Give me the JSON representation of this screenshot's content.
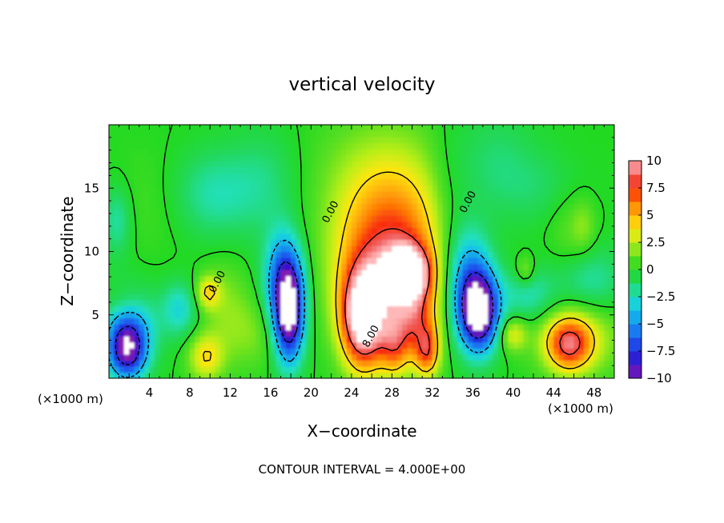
{
  "chart_data": {
    "type": "heatmap",
    "title": "vertical velocity",
    "xlabel": "X−coordinate",
    "ylabel": "Z−coordinate",
    "x_unit_left": "(×1000 m)",
    "x_unit_right": "(×1000 m)",
    "footer": "CONTOUR INTERVAL = 4.000E+00",
    "xlim": [
      0,
      50
    ],
    "ylim": [
      0,
      20
    ],
    "x_ticks": [
      4,
      8,
      12,
      16,
      20,
      24,
      28,
      32,
      36,
      40,
      44,
      48
    ],
    "y_ticks": [
      5,
      10,
      15
    ],
    "colorbar": {
      "min": -10,
      "max": 10,
      "ticks": [
        10,
        7.5,
        5,
        2.5,
        0,
        -2.5,
        -5,
        -7.5,
        -10
      ],
      "tick_labels": [
        "10",
        "7.5",
        "5",
        "2.5",
        "0",
        "−2.5",
        "−5",
        "−7.5",
        "−10"
      ]
    },
    "contour_labels": [
      {
        "text": "0.00",
        "x": 22.2,
        "y": 13.0
      },
      {
        "text": "0.00",
        "x": 35.8,
        "y": 13.8
      },
      {
        "text": "0.00",
        "x": 11.0,
        "y": 7.5
      },
      {
        "text": "8.00",
        "x": 26.2,
        "y": 3.2
      }
    ],
    "features": [
      {
        "x": 1.8,
        "y": 2.3,
        "value": -10,
        "sx": 1.3,
        "sy": 1.6
      },
      {
        "x": 2.2,
        "y": 4.5,
        "value": -3,
        "sx": 2.0,
        "sy": 2.0
      },
      {
        "x": 9.6,
        "y": 1.7,
        "value": 4,
        "sx": 1.2,
        "sy": 1.3
      },
      {
        "x": 9.8,
        "y": 6.8,
        "value": 4,
        "sx": 0.8,
        "sy": 0.9
      },
      {
        "x": 11.5,
        "y": 6.0,
        "value": 1.5,
        "sx": 1.6,
        "sy": 2.5
      },
      {
        "x": 14.0,
        "y": 3.5,
        "value": 1.5,
        "sx": 2.0,
        "sy": 2.0
      },
      {
        "x": 7.0,
        "y": 5.5,
        "value": -3,
        "sx": 1.2,
        "sy": 1.5
      },
      {
        "x": 17.8,
        "y": 5.0,
        "value": -11,
        "sx": 1.0,
        "sy": 2.6
      },
      {
        "x": 17.3,
        "y": 8.0,
        "value": -6,
        "sx": 1.3,
        "sy": 2.5
      },
      {
        "x": 25.2,
        "y": 4.8,
        "value": 12,
        "sx": 1.5,
        "sy": 2.7
      },
      {
        "x": 29.5,
        "y": 8.4,
        "value": 10,
        "sx": 1.4,
        "sy": 1.3
      },
      {
        "x": 27.8,
        "y": 8.5,
        "value": 6,
        "sx": 3.6,
        "sy": 4.0
      },
      {
        "x": 28.0,
        "y": 12.5,
        "value": 3,
        "sx": 4.0,
        "sy": 4.0
      },
      {
        "x": 26.7,
        "y": 16.5,
        "value": 1.2,
        "sx": 5.0,
        "sy": 3.5
      },
      {
        "x": 30.0,
        "y": 5.0,
        "value": 5,
        "sx": 1.5,
        "sy": 2.5
      },
      {
        "x": 28.2,
        "y": 2.5,
        "value": 4,
        "sx": 0.9,
        "sy": 1.6
      },
      {
        "x": 31.5,
        "y": 2.2,
        "value": 6,
        "sx": 0.8,
        "sy": 1.4
      },
      {
        "x": 36.6,
        "y": 5.3,
        "value": -12,
        "sx": 1.3,
        "sy": 2.1
      },
      {
        "x": 35.5,
        "y": 8.0,
        "value": -5,
        "sx": 1.6,
        "sy": 3.0
      },
      {
        "x": 40.0,
        "y": 3.5,
        "value": 3.5,
        "sx": 0.9,
        "sy": 0.9
      },
      {
        "x": 45.5,
        "y": 2.7,
        "value": 7,
        "sx": 1.5,
        "sy": 1.4
      },
      {
        "x": 46.5,
        "y": 3.5,
        "value": 3,
        "sx": 3.0,
        "sy": 2.2
      },
      {
        "x": 41.5,
        "y": 6.5,
        "value": -2.5,
        "sx": 2.0,
        "sy": 1.5
      },
      {
        "x": 41.2,
        "y": 8.5,
        "value": 2.5,
        "sx": 0.6,
        "sy": 0.8
      },
      {
        "x": 45.5,
        "y": 11.5,
        "value": 1.2,
        "sx": 1.5,
        "sy": 2.5
      },
      {
        "x": 47.0,
        "y": 12.0,
        "value": 1.5,
        "sx": 0.8,
        "sy": 1.5
      },
      {
        "x": 47.5,
        "y": 7.5,
        "value": -2.5,
        "sx": 2.5,
        "sy": 2.0
      },
      {
        "x": 0.8,
        "y": 12.5,
        "value": -2.5,
        "sx": 1.0,
        "sy": 2.0
      },
      {
        "x": 1.5,
        "y": 6.0,
        "value": 1.0,
        "sx": 1.5,
        "sy": 1.0
      },
      {
        "x": 10.0,
        "y": 14.5,
        "value": -2.5,
        "sx": 3.0,
        "sy": 2.5
      },
      {
        "x": 5.0,
        "y": 14.0,
        "value": 0.8,
        "sx": 4.0,
        "sy": 3.0
      },
      {
        "x": 15.5,
        "y": 15.5,
        "value": -1.5,
        "sx": 2.5,
        "sy": 3.0
      },
      {
        "x": 38.0,
        "y": 17.0,
        "value": -1.5,
        "sx": 3.0,
        "sy": 3.0
      },
      {
        "x": 43.0,
        "y": 15.0,
        "value": -1.0,
        "sx": 3.0,
        "sy": 2.0
      },
      {
        "x": 33.5,
        "y": 14.0,
        "value": -1.0,
        "sx": 1.5,
        "sy": 4.0
      }
    ],
    "grid": false,
    "legend": "right"
  }
}
